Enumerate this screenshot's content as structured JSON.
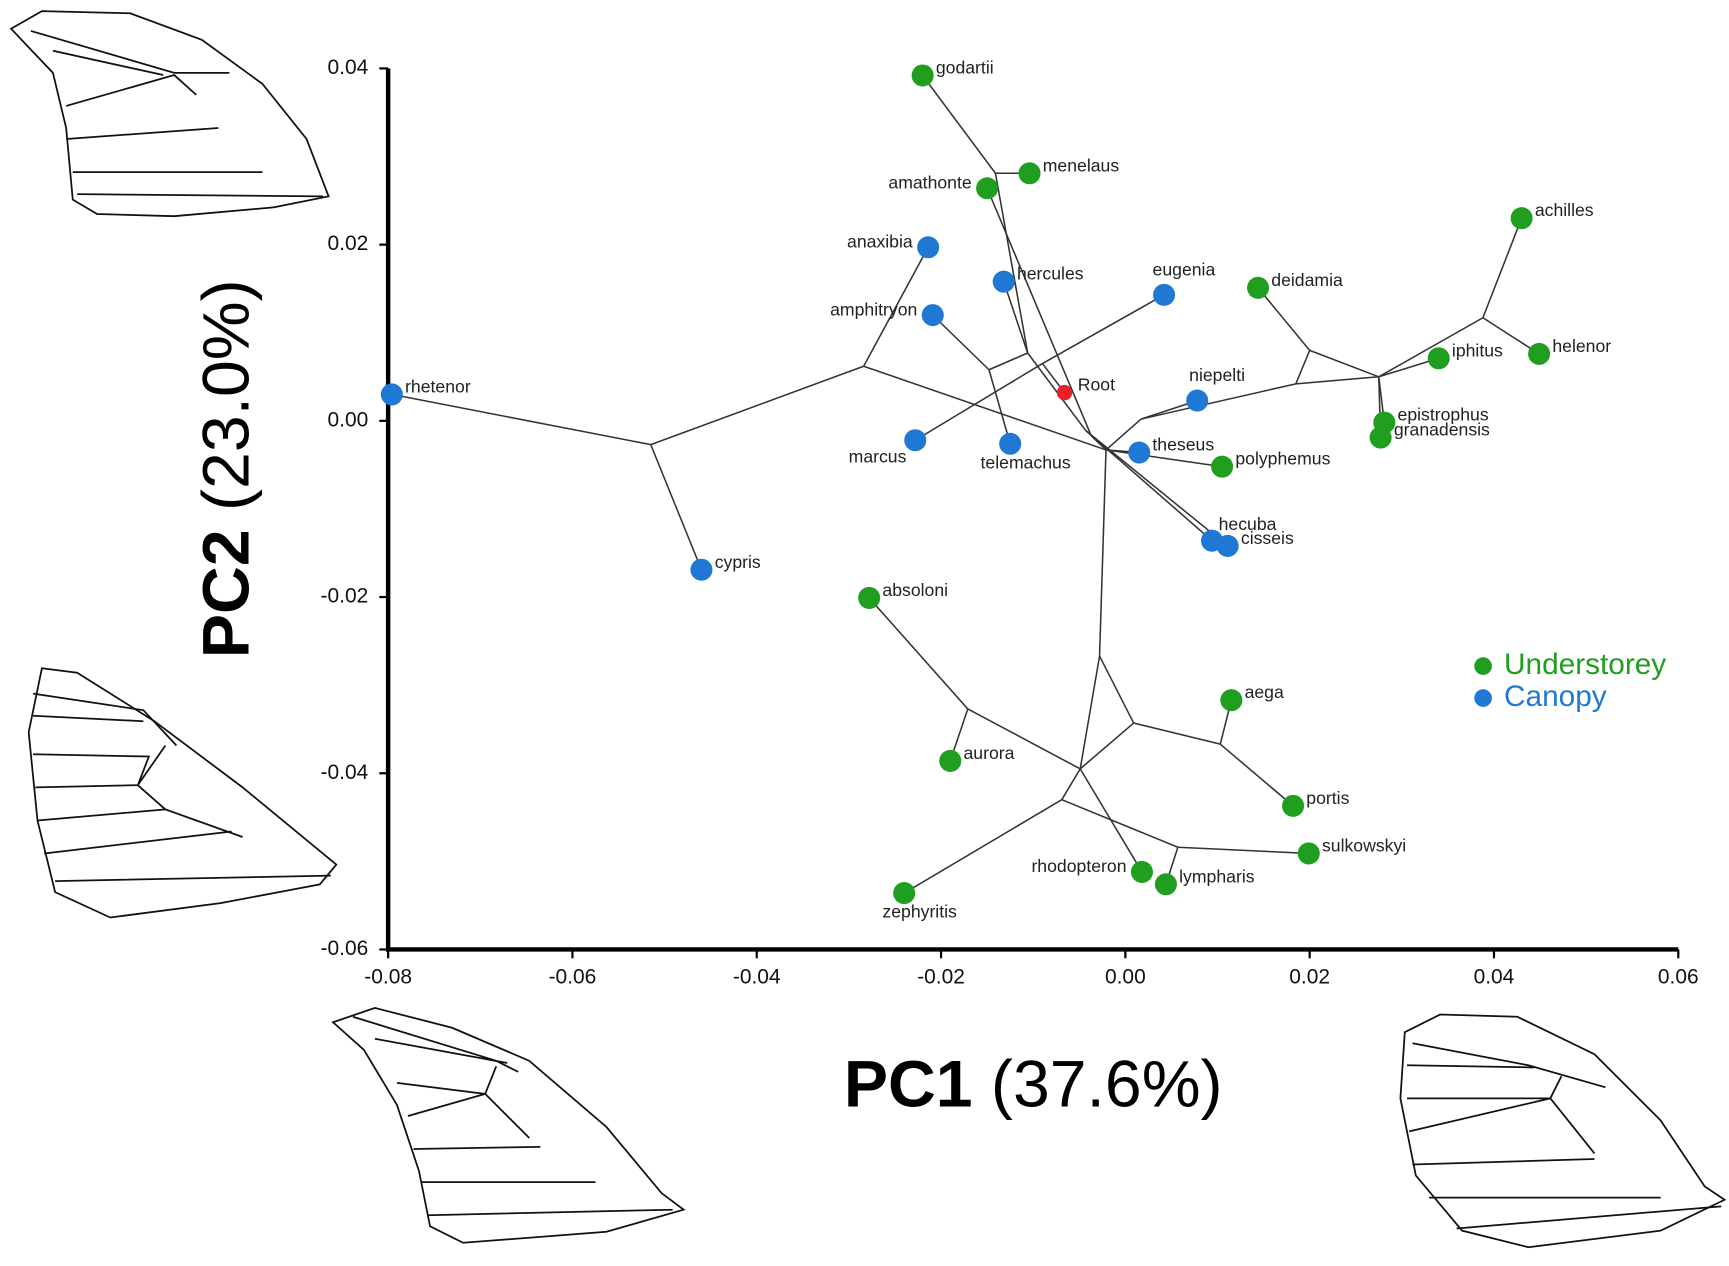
{
  "chart_data": {
    "type": "scatter",
    "x_label_bold": "PC1",
    "x_label_rest": "(37.6%)",
    "y_label_bold": "PC2",
    "y_label_rest": "(23.0%)",
    "xlim": [
      -0.08,
      0.06
    ],
    "ylim": [
      -0.06,
      0.04
    ],
    "xticks": [
      -0.08,
      -0.06,
      -0.04,
      -0.02,
      {
        "value": 0,
        "label": "0.00"
      },
      0.02,
      0.04,
      0.06
    ],
    "yticks": [
      -0.06,
      -0.04,
      -0.02,
      {
        "value": 0,
        "label": "0.00"
      },
      0.02,
      0.04
    ],
    "series": [
      {
        "name": "Understorey",
        "color": "#1f9e1f",
        "labels": [
          "godartii",
          "menelaus",
          "amathonte",
          "deidamia",
          "achilles",
          "iphitus",
          "helenor",
          "epistrophus",
          "granadensis",
          "polyphemus",
          "absoloni",
          "aega",
          "aurora",
          "portis",
          "sulkowskyi",
          "rhodopteron",
          "lympharis",
          "zephyritis"
        ],
        "x": [
          -0.022,
          -0.0104,
          -0.015,
          0.0144,
          0.043,
          0.034,
          0.0449,
          0.0281,
          0.0277,
          0.0105,
          -0.0278,
          0.0115,
          -0.019,
          0.0182,
          0.0199,
          0.0018,
          0.0044,
          -0.024
        ],
        "y": [
          0.0392,
          0.0281,
          0.0264,
          0.0151,
          0.023,
          0.0071,
          0.0076,
          -0.0002,
          -0.0019,
          -0.0052,
          -0.0201,
          -0.0317,
          -0.0386,
          -0.0437,
          -0.0491,
          -0.0512,
          -0.0526,
          -0.0536
        ]
      },
      {
        "name": "Canopy",
        "color": "#1f78d4",
        "labels": [
          "anaxibia",
          "hercules",
          "eugenia",
          "amphitryon",
          "rhetenor",
          "niepelti",
          "marcus",
          "telemachus",
          "theseus",
          "hecuba",
          "cisseis",
          "cypris"
        ],
        "x": [
          -0.0214,
          -0.0132,
          0.0042,
          -0.0209,
          -0.0796,
          0.0078,
          -0.0228,
          -0.0125,
          0.0015,
          0.0094,
          0.0111,
          -0.046
        ],
        "y": [
          0.0197,
          0.0158,
          0.0143,
          0.012,
          0.003,
          0.0023,
          -0.0022,
          -0.0026,
          -0.0036,
          -0.0136,
          -0.0142,
          -0.0169
        ]
      }
    ],
    "root": {
      "label": "Root",
      "color": "#e8202a",
      "x": -0.0066,
      "y": 0.0032
    },
    "tree_edges": [
      [
        -0.0796,
        0.003,
        -0.0515,
        -0.0027
      ],
      [
        -0.0515,
        -0.0027,
        -0.046,
        -0.0169
      ],
      [
        -0.0515,
        -0.0027,
        -0.0284,
        0.0062
      ],
      [
        -0.0284,
        0.0062,
        -0.0214,
        0.0197
      ],
      [
        -0.0284,
        0.0062,
        -0.0021,
        -0.0033
      ],
      [
        -0.022,
        0.0392,
        -0.0141,
        0.0281
      ],
      [
        -0.0141,
        0.0281,
        -0.0104,
        0.0281
      ],
      [
        -0.0141,
        0.0281,
        -0.0106,
        0.0077
      ],
      [
        -0.015,
        0.0264,
        -0.0037,
        -0.0017
      ],
      [
        -0.0037,
        -0.0017,
        -0.0021,
        -0.0033
      ],
      [
        -0.0106,
        0.0077,
        -0.0132,
        0.0158
      ],
      [
        -0.0106,
        0.0077,
        -0.0148,
        0.0058
      ],
      [
        -0.0148,
        0.0058,
        -0.0209,
        0.012
      ],
      [
        -0.0148,
        0.0058,
        -0.0125,
        -0.0026
      ],
      [
        -0.0106,
        0.0077,
        -0.0043,
        -0.0011
      ],
      [
        -0.0043,
        -0.0011,
        0.0094,
        -0.0136
      ],
      [
        -0.0043,
        -0.0011,
        0.0111,
        -0.0142
      ],
      [
        -0.0021,
        -0.0033,
        0.0015,
        -0.0036
      ],
      [
        -0.0021,
        -0.0033,
        0.0017,
        0.0002
      ],
      [
        0.0017,
        0.0002,
        0.0078,
        0.0023
      ],
      [
        0.0017,
        0.0002,
        0.0185,
        0.0042
      ],
      [
        0.0185,
        0.0042,
        0.02,
        0.008
      ],
      [
        0.02,
        0.008,
        0.0144,
        0.0151
      ],
      [
        0.02,
        0.008,
        0.0275,
        0.005
      ],
      [
        0.0185,
        0.0042,
        0.0275,
        0.005
      ],
      [
        0.0275,
        0.005,
        0.0281,
        -0.0002
      ],
      [
        0.0275,
        0.005,
        0.0277,
        -0.0019
      ],
      [
        0.0275,
        0.005,
        0.0388,
        0.0117
      ],
      [
        0.0388,
        0.0117,
        0.043,
        0.023
      ],
      [
        0.0388,
        0.0117,
        0.0449,
        0.0076
      ],
      [
        0.0275,
        0.005,
        0.034,
        0.0071
      ],
      [
        -0.0228,
        -0.0022,
        -0.009,
        0.0065
      ],
      [
        -0.009,
        0.0065,
        0.0042,
        0.0143
      ],
      [
        -0.009,
        0.0065,
        -0.0066,
        0.0032
      ],
      [
        -0.0021,
        -0.0033,
        0.0105,
        -0.0052
      ],
      [
        -0.0021,
        -0.0033,
        -0.0028,
        -0.0267
      ],
      [
        -0.0028,
        -0.0267,
        0.0009,
        -0.0343
      ],
      [
        -0.0028,
        -0.0267,
        -0.0049,
        -0.0395
      ],
      [
        0.0009,
        -0.0343,
        0.0103,
        -0.0367
      ],
      [
        0.0103,
        -0.0367,
        0.0115,
        -0.0317
      ],
      [
        0.0103,
        -0.0367,
        0.0182,
        -0.0437
      ],
      [
        0.0009,
        -0.0343,
        -0.0049,
        -0.0395
      ],
      [
        -0.0049,
        -0.0395,
        -0.0171,
        -0.0327
      ],
      [
        -0.0171,
        -0.0327,
        -0.0278,
        -0.0201
      ],
      [
        -0.0171,
        -0.0327,
        -0.019,
        -0.0386
      ],
      [
        -0.0049,
        -0.0395,
        0.0018,
        -0.0512
      ],
      [
        -0.0049,
        -0.0395,
        -0.0069,
        -0.043
      ],
      [
        -0.0069,
        -0.043,
        -0.024,
        -0.0536
      ],
      [
        -0.0069,
        -0.043,
        0.0057,
        -0.0484
      ],
      [
        0.0057,
        -0.0484,
        0.0199,
        -0.0491
      ],
      [
        0.0057,
        -0.0484,
        0.0044,
        -0.0526
      ]
    ]
  }
}
